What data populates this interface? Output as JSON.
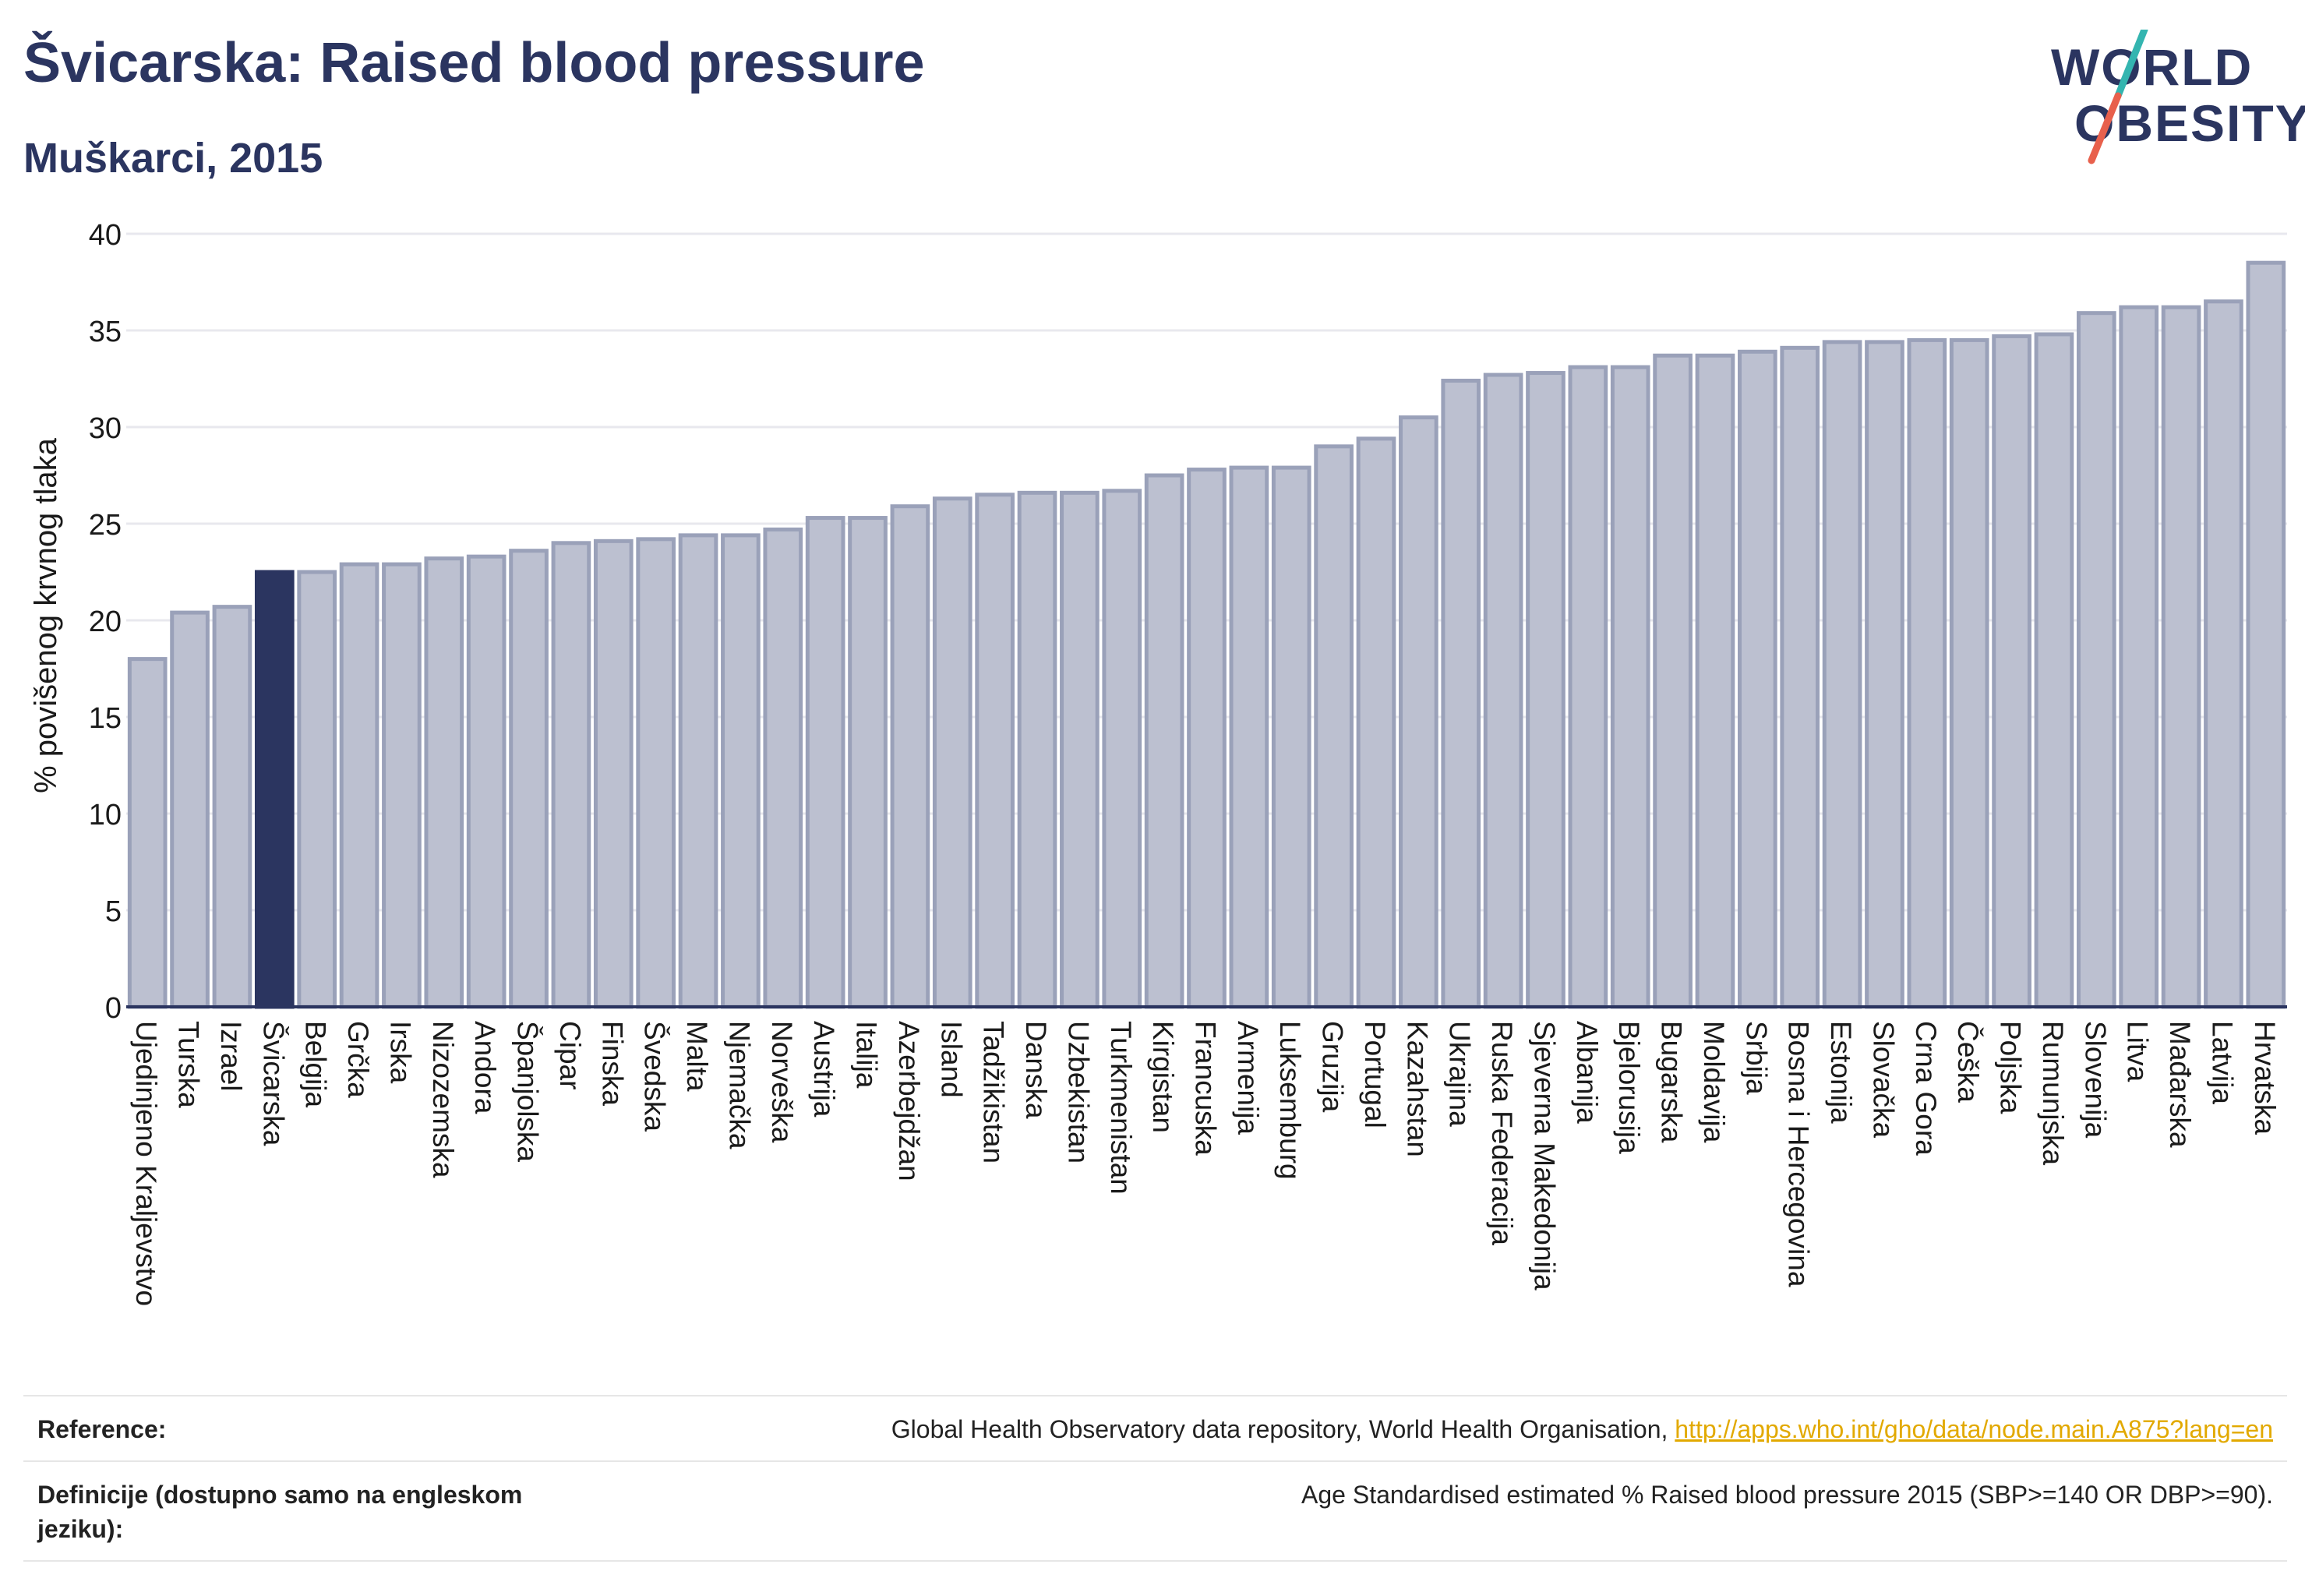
{
  "title": "Švicarska: Raised blood pressure",
  "subtitle": "Muškarci, 2015",
  "logo": {
    "line1": "WORLD",
    "line2": "OBESITY",
    "accent_colors": [
      "#34b5b0",
      "#e8604c"
    ]
  },
  "colors": {
    "bar": "#bcc0d0",
    "bar_edge": "#9aa1b9",
    "highlight": "#2b3560",
    "grid": "#e8e8ee",
    "axis": "#2b3560"
  },
  "chart_data": {
    "type": "bar",
    "title": "",
    "xlabel": "",
    "ylabel": "% povišenog krvnog tlaka",
    "ylim": [
      0,
      40
    ],
    "yticks": [
      0,
      5,
      10,
      15,
      20,
      25,
      30,
      35,
      40
    ],
    "grid": true,
    "highlight": "Švicarska",
    "categories": [
      "Ujedinjeno Kraljevstvo",
      "Turska",
      "Izrael",
      "Švicarska",
      "Belgija",
      "Grčka",
      "Irska",
      "Nizozemska",
      "Andora",
      "Španjolska",
      "Cipar",
      "Finska",
      "Švedska",
      "Malta",
      "Njemačka",
      "Norveška",
      "Austrija",
      "Italija",
      "Azerbejdžan",
      "Island",
      "Tadžikistan",
      "Danska",
      "Uzbekistan",
      "Turkmenistan",
      "Kirgistan",
      "Francuska",
      "Armenija",
      "Luksemburg",
      "Gruzija",
      "Portugal",
      "Kazahstan",
      "Ukrajina",
      "Ruska Federacija",
      "Sjeverna Makedonija",
      "Albanija",
      "Bjelorusija",
      "Bugarska",
      "Moldavija",
      "Srbija",
      "Bosna i Hercegovina",
      "Estonija",
      "Slovačka",
      "Crna Gora",
      "Češka",
      "Poljska",
      "Rumunjska",
      "Slovenija",
      "Litva",
      "Mađarska",
      "Latvija",
      "Hrvatska"
    ],
    "values": [
      18.0,
      20.4,
      20.7,
      22.5,
      22.5,
      22.9,
      22.9,
      23.2,
      23.3,
      23.6,
      24.0,
      24.1,
      24.2,
      24.4,
      24.4,
      24.7,
      25.3,
      25.3,
      25.9,
      26.3,
      26.5,
      26.6,
      26.6,
      26.7,
      27.5,
      27.8,
      27.9,
      27.9,
      29.0,
      29.4,
      30.5,
      32.4,
      32.7,
      32.8,
      33.1,
      33.1,
      33.7,
      33.7,
      33.9,
      34.1,
      34.4,
      34.4,
      34.5,
      34.5,
      34.7,
      34.8,
      35.9,
      36.2,
      36.2,
      36.5,
      38.5
    ]
  },
  "footer": {
    "reference_label": "Reference:",
    "reference_text": "Global Health Observatory data repository, World Health Organisation,",
    "reference_link": "http://apps.who.int/gho/data/node.main.A875?lang=en",
    "definition_label": "Definicije (dostupno samo na engleskom jeziku):",
    "definition_text": "Age Standardised estimated % Raised blood pressure 2015 (SBP>=140 OR DBP>=90)."
  }
}
